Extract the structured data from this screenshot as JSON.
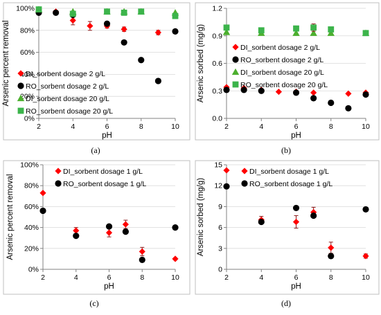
{
  "chart_data": [
    {
      "type": "scatter",
      "panel_label": "(a)",
      "xlabel": "pH",
      "ylabel": "Arsenic percent removal",
      "xlim": [
        2,
        10
      ],
      "ylim": [
        0,
        100
      ],
      "xticks": [
        2,
        4,
        6,
        8,
        10
      ],
      "yticks": [
        0,
        20,
        40,
        60,
        80,
        100
      ],
      "yticklabels": [
        "0%",
        "20%",
        "40%",
        "60%",
        "80%",
        "100%"
      ],
      "grid": "horizontal",
      "legend_placement": "bottom-left",
      "series": [
        {
          "name": "DI_sorbent dosage 2 g/L",
          "marker": "diamond",
          "color": "#ff0000",
          "x": [
            2,
            3,
            4,
            5,
            6,
            7,
            9,
            10
          ],
          "y": [
            99,
            97,
            89,
            84,
            84,
            81,
            78,
            79
          ],
          "err": [
            0,
            0,
            4,
            4,
            2,
            2,
            2,
            0
          ]
        },
        {
          "name": "RO_sorbent dosage 2 g/L",
          "marker": "circle",
          "color": "#000000",
          "x": [
            2,
            3,
            4,
            6,
            7,
            8,
            9,
            10
          ],
          "y": [
            96,
            96,
            94,
            86,
            69,
            53,
            34,
            79
          ],
          "err": [
            0,
            0,
            0,
            0,
            0,
            0,
            0,
            0
          ]
        },
        {
          "name": "DI_sorbent dosage 20 g/L",
          "marker": "triangle",
          "color": "#4caf2e",
          "x": [
            2,
            4,
            6,
            7,
            8,
            10
          ],
          "y": [
            99,
            97,
            97,
            97,
            97,
            96
          ],
          "err": [
            0,
            0,
            0,
            0,
            0,
            0
          ]
        },
        {
          "name": "RO_sorbent dosage 20 g/L",
          "marker": "square",
          "color": "#3cb44b",
          "x": [
            2,
            4,
            6,
            7,
            8,
            10
          ],
          "y": [
            99,
            95,
            97,
            96,
            97,
            93
          ],
          "err": [
            0,
            0,
            0,
            0,
            0,
            0
          ]
        }
      ]
    },
    {
      "type": "scatter",
      "panel_label": "(b)",
      "xlabel": "pH",
      "ylabel": "Arsenic sorbed (mg/g)",
      "xlim": [
        2,
        10
      ],
      "ylim": [
        0,
        1.2
      ],
      "xticks": [
        2,
        4,
        6,
        8,
        10
      ],
      "yticks": [
        0,
        0.3,
        0.6,
        0.9,
        1.2
      ],
      "yticklabels": [
        "0.0",
        "0.3",
        "0.6",
        "0.9",
        "1.2"
      ],
      "grid": "horizontal",
      "legend_placement": "middle-right",
      "series": [
        {
          "name": "DI_sorbent dosage 2 g/L",
          "marker": "diamond",
          "color": "#ff0000",
          "x": [
            2,
            3,
            4,
            5,
            6,
            7,
            9,
            10
          ],
          "y": [
            0.34,
            0.33,
            0.31,
            0.29,
            0.29,
            0.28,
            0.27,
            0.28
          ],
          "err": [
            0,
            0,
            0,
            0,
            0,
            0,
            0,
            0
          ]
        },
        {
          "name": "RO_sorbent dosage 2 g/L",
          "marker": "circle",
          "color": "#000000",
          "x": [
            2,
            3,
            4,
            6,
            7,
            8,
            9,
            10
          ],
          "y": [
            0.31,
            0.31,
            0.3,
            0.28,
            0.22,
            0.17,
            0.11,
            0.26
          ],
          "err": [
            0,
            0,
            0,
            0,
            0,
            0,
            0,
            0
          ]
        },
        {
          "name": "DI_sorbent dosage 20 g/L",
          "marker": "triangle",
          "color": "#4caf2e",
          "x": [
            2,
            4,
            6,
            7,
            8,
            10
          ],
          "y": [
            0.94,
            0.93,
            0.93,
            0.93,
            0.93,
            0.93
          ],
          "err": [
            0,
            0,
            0,
            0,
            0,
            0
          ]
        },
        {
          "name": "RO_sorbent dosage 20 g/L",
          "marker": "square",
          "color": "#3cb44b",
          "x": [
            2,
            4,
            6,
            7,
            8,
            10
          ],
          "y": [
            0.99,
            0.96,
            0.98,
            0.99,
            0.97,
            0.93
          ],
          "err": [
            0,
            0,
            0,
            0.04,
            0,
            0
          ]
        }
      ]
    },
    {
      "type": "scatter",
      "panel_label": "(c)",
      "xlabel": "pH",
      "ylabel": "Arsenic percent removal",
      "xlim": [
        2,
        10
      ],
      "ylim": [
        0,
        100
      ],
      "xticks": [
        2,
        4,
        6,
        8,
        10
      ],
      "yticks": [
        0,
        20,
        40,
        60,
        80,
        100
      ],
      "yticklabels": [
        "0%",
        "20%",
        "40%",
        "60%",
        "80%",
        "100%"
      ],
      "grid": "horizontal",
      "legend_placement": "top-right",
      "series": [
        {
          "name": "DI_sorbent dosage 1 g/L",
          "marker": "diamond",
          "color": "#ff0000",
          "x": [
            2,
            4,
            6,
            7,
            8,
            10
          ],
          "y": [
            73,
            37,
            35,
            43,
            17,
            10
          ],
          "err": [
            0,
            3,
            4,
            4,
            4,
            1
          ]
        },
        {
          "name": "RO_sorbent dosage 1 g/L",
          "marker": "circle",
          "color": "#000000",
          "x": [
            2,
            4,
            6,
            7,
            8,
            10
          ],
          "y": [
            56,
            32,
            41,
            36,
            9,
            40
          ],
          "err": [
            0,
            0,
            0,
            0,
            0,
            0
          ]
        }
      ]
    },
    {
      "type": "scatter",
      "panel_label": "(d)",
      "xlabel": "pH",
      "ylabel": "Arsenic sorbed (mg/g)",
      "xlim": [
        2,
        10
      ],
      "ylim": [
        0,
        15
      ],
      "xticks": [
        2,
        4,
        6,
        8,
        10
      ],
      "yticks": [
        0,
        3,
        6,
        9,
        12,
        15
      ],
      "yticklabels": [
        "0",
        "3",
        "6",
        "9",
        "12",
        "15"
      ],
      "grid": "horizontal",
      "legend_placement": "top-right",
      "series": [
        {
          "name": "DI_sorbent dosage 1 g/L",
          "marker": "diamond",
          "color": "#ff0000",
          "x": [
            2,
            4,
            6,
            7,
            8,
            10
          ],
          "y": [
            14.2,
            7.1,
            6.8,
            8.2,
            3.1,
            1.9
          ],
          "err": [
            0,
            0.5,
            0.9,
            0.7,
            0.8,
            0.3
          ]
        },
        {
          "name": "RO_sorbent dosage 1 g/L",
          "marker": "circle",
          "color": "#000000",
          "x": [
            2,
            4,
            6,
            7,
            8,
            10
          ],
          "y": [
            11.9,
            6.8,
            8.8,
            7.7,
            1.9,
            8.6
          ],
          "err": [
            0,
            0,
            0,
            0,
            0,
            0
          ]
        }
      ]
    }
  ]
}
